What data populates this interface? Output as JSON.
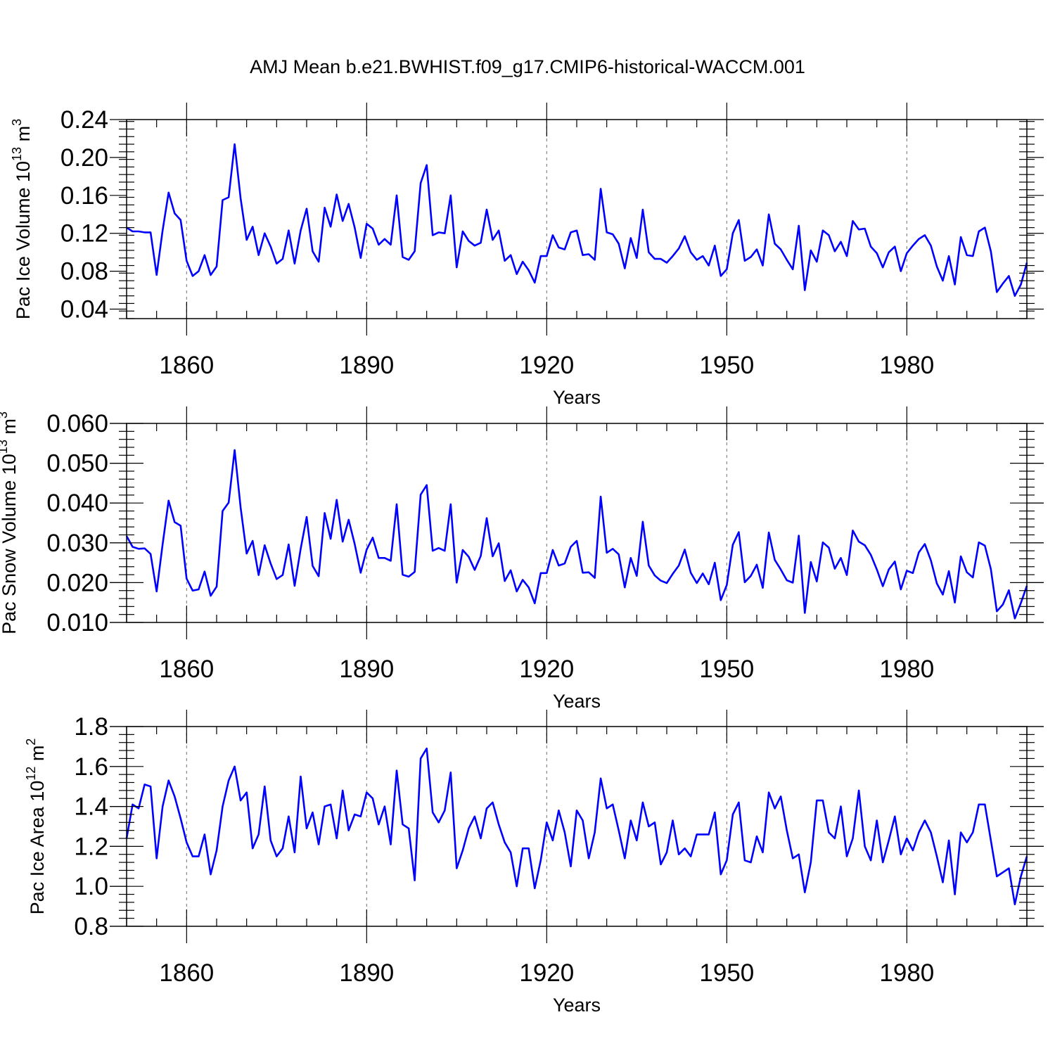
{
  "title": "AMJ Mean b.e21.BWHIST.f09_g17.CMIP6-historical-WACCM.001",
  "colors": {
    "line": "#0000ff",
    "frame": "#000000",
    "grid": "#888888"
  },
  "chart_data": [
    {
      "type": "line",
      "xlabel": "Years",
      "ylabel_text": "Pac Ice Volume 10",
      "ylabel_exp": "13",
      "ylabel_unit": " m",
      "ylabel_unit_exp": "3",
      "xlim": [
        1850,
        2000
      ],
      "ylim": [
        0.03,
        0.24
      ],
      "xticks": [
        1860,
        1890,
        1920,
        1950,
        1980
      ],
      "xtick_labels": [
        "1860",
        "1890",
        "1920",
        "1950",
        "1980"
      ],
      "yticks": [
        0.04,
        0.08,
        0.12,
        0.16,
        0.2,
        0.24
      ],
      "ytick_labels": [
        "0.04",
        "0.08",
        "0.12",
        "0.16",
        "0.20",
        "0.24"
      ],
      "grid": "vertical dashed at major x ticks",
      "series": [
        {
          "x_start": 1850,
          "values": [
            0.126,
            0.122,
            0.122,
            0.121,
            0.121,
            0.076,
            0.123,
            0.163,
            0.141,
            0.134,
            0.091,
            0.075,
            0.08,
            0.097,
            0.076,
            0.085,
            0.155,
            0.158,
            0.214,
            0.157,
            0.113,
            0.127,
            0.097,
            0.12,
            0.106,
            0.088,
            0.093,
            0.123,
            0.088,
            0.123,
            0.146,
            0.101,
            0.09,
            0.147,
            0.127,
            0.161,
            0.133,
            0.151,
            0.126,
            0.094,
            0.13,
            0.125,
            0.108,
            0.114,
            0.108,
            0.16,
            0.095,
            0.092,
            0.101,
            0.173,
            0.192,
            0.118,
            0.121,
            0.12,
            0.16,
            0.084,
            0.122,
            0.112,
            0.107,
            0.11,
            0.145,
            0.113,
            0.123,
            0.091,
            0.097,
            0.077,
            0.09,
            0.081,
            0.068,
            0.096,
            0.096,
            0.118,
            0.105,
            0.103,
            0.121,
            0.123,
            0.097,
            0.098,
            0.092,
            0.167,
            0.121,
            0.119,
            0.109,
            0.083,
            0.115,
            0.094,
            0.145,
            0.1,
            0.093,
            0.093,
            0.089,
            0.096,
            0.104,
            0.117,
            0.1,
            0.092,
            0.096,
            0.086,
            0.107,
            0.075,
            0.082,
            0.12,
            0.134,
            0.091,
            0.095,
            0.103,
            0.086,
            0.14,
            0.109,
            0.103,
            0.092,
            0.082,
            0.128,
            0.06,
            0.102,
            0.09,
            0.123,
            0.118,
            0.101,
            0.111,
            0.096,
            0.133,
            0.124,
            0.125,
            0.106,
            0.099,
            0.084,
            0.1,
            0.106,
            0.08,
            0.099,
            0.107,
            0.114,
            0.118,
            0.107,
            0.085,
            0.07,
            0.096,
            0.066,
            0.116,
            0.097,
            0.096,
            0.122,
            0.126,
            0.101,
            0.058,
            0.067,
            0.075,
            0.054,
            0.066,
            0.089
          ]
        }
      ]
    },
    {
      "type": "line",
      "xlabel": "Years",
      "ylabel_text": "Pac Snow Volume 10",
      "ylabel_exp": "13",
      "ylabel_unit": " m",
      "ylabel_unit_exp": "3",
      "xlim": [
        1850,
        2000
      ],
      "ylim": [
        0.01,
        0.06
      ],
      "xticks": [
        1860,
        1890,
        1920,
        1950,
        1980
      ],
      "xtick_labels": [
        "1860",
        "1890",
        "1920",
        "1950",
        "1980"
      ],
      "yticks": [
        0.01,
        0.02,
        0.03,
        0.04,
        0.05,
        0.06
      ],
      "ytick_labels": [
        "0.010",
        "0.020",
        "0.030",
        "0.040",
        "0.050",
        "0.060"
      ],
      "grid": "vertical dashed at major x ticks",
      "series": [
        {
          "x_start": 1850,
          "values": [
            0.0317,
            0.029,
            0.0285,
            0.0286,
            0.0272,
            0.0178,
            0.0296,
            0.0406,
            0.0352,
            0.0343,
            0.021,
            0.018,
            0.0183,
            0.0228,
            0.0167,
            0.019,
            0.038,
            0.0401,
            0.0533,
            0.0389,
            0.0273,
            0.0305,
            0.0219,
            0.0294,
            0.0248,
            0.0209,
            0.0219,
            0.0296,
            0.0192,
            0.0285,
            0.0365,
            0.0242,
            0.0216,
            0.0375,
            0.031,
            0.0408,
            0.0303,
            0.0358,
            0.0297,
            0.0225,
            0.0283,
            0.0313,
            0.0262,
            0.0262,
            0.0255,
            0.0397,
            0.022,
            0.0215,
            0.0227,
            0.0421,
            0.0445,
            0.028,
            0.0287,
            0.028,
            0.0397,
            0.02,
            0.0282,
            0.0265,
            0.0232,
            0.0267,
            0.0362,
            0.0266,
            0.0299,
            0.0204,
            0.0231,
            0.0178,
            0.0207,
            0.0188,
            0.0148,
            0.0224,
            0.0224,
            0.0282,
            0.0243,
            0.0248,
            0.029,
            0.0305,
            0.0225,
            0.0226,
            0.0212,
            0.0416,
            0.0275,
            0.0285,
            0.0271,
            0.0188,
            0.0262,
            0.0217,
            0.0353,
            0.0243,
            0.0218,
            0.0205,
            0.0199,
            0.0222,
            0.0243,
            0.0283,
            0.0225,
            0.0199,
            0.0223,
            0.0196,
            0.025,
            0.0156,
            0.0194,
            0.0295,
            0.0327,
            0.0201,
            0.0217,
            0.0245,
            0.0187,
            0.0326,
            0.0257,
            0.0233,
            0.0206,
            0.02,
            0.0318,
            0.0124,
            0.0252,
            0.0203,
            0.0301,
            0.0288,
            0.0235,
            0.0262,
            0.0219,
            0.0331,
            0.0303,
            0.0294,
            0.027,
            0.0233,
            0.0191,
            0.0233,
            0.0253,
            0.0183,
            0.023,
            0.0224,
            0.0276,
            0.0297,
            0.0256,
            0.0198,
            0.017,
            0.0229,
            0.015,
            0.0266,
            0.0226,
            0.0213,
            0.0301,
            0.0293,
            0.0234,
            0.0128,
            0.0145,
            0.0181,
            0.011,
            0.0149,
            0.0192
          ]
        }
      ]
    },
    {
      "type": "line",
      "xlabel": "Years",
      "ylabel_text": "Pac Ice Area 10",
      "ylabel_exp": "12",
      "ylabel_unit": " m",
      "ylabel_unit_exp": "2",
      "xlim": [
        1850,
        2000
      ],
      "ylim": [
        0.8,
        1.8
      ],
      "xticks": [
        1860,
        1890,
        1920,
        1950,
        1980
      ],
      "xtick_labels": [
        "1860",
        "1890",
        "1920",
        "1950",
        "1980"
      ],
      "yticks": [
        0.8,
        1.0,
        1.2,
        1.4,
        1.6,
        1.8
      ],
      "ytick_labels": [
        "0.8",
        "1.0",
        "1.2",
        "1.4",
        "1.6",
        "1.8"
      ],
      "grid": "vertical dashed at major x ticks",
      "series": [
        {
          "x_start": 1850,
          "values": [
            1.24,
            1.41,
            1.39,
            1.51,
            1.5,
            1.14,
            1.4,
            1.53,
            1.45,
            1.34,
            1.22,
            1.15,
            1.15,
            1.26,
            1.06,
            1.18,
            1.4,
            1.53,
            1.6,
            1.43,
            1.47,
            1.19,
            1.26,
            1.5,
            1.23,
            1.15,
            1.19,
            1.35,
            1.17,
            1.55,
            1.29,
            1.37,
            1.21,
            1.4,
            1.41,
            1.24,
            1.48,
            1.28,
            1.36,
            1.35,
            1.47,
            1.44,
            1.31,
            1.4,
            1.21,
            1.58,
            1.31,
            1.29,
            1.03,
            1.64,
            1.69,
            1.37,
            1.32,
            1.38,
            1.57,
            1.09,
            1.18,
            1.29,
            1.35,
            1.24,
            1.39,
            1.42,
            1.31,
            1.22,
            1.17,
            1.0,
            1.19,
            1.19,
            0.99,
            1.13,
            1.32,
            1.23,
            1.38,
            1.27,
            1.1,
            1.38,
            1.33,
            1.14,
            1.27,
            1.54,
            1.39,
            1.41,
            1.28,
            1.14,
            1.33,
            1.23,
            1.42,
            1.3,
            1.32,
            1.11,
            1.17,
            1.33,
            1.16,
            1.19,
            1.15,
            1.26,
            1.26,
            1.26,
            1.37,
            1.06,
            1.13,
            1.36,
            1.42,
            1.13,
            1.12,
            1.25,
            1.17,
            1.47,
            1.39,
            1.45,
            1.28,
            1.14,
            1.16,
            0.97,
            1.12,
            1.43,
            1.43,
            1.27,
            1.24,
            1.4,
            1.15,
            1.24,
            1.48,
            1.2,
            1.13,
            1.33,
            1.12,
            1.23,
            1.35,
            1.16,
            1.24,
            1.18,
            1.27,
            1.33,
            1.27,
            1.15,
            1.02,
            1.23,
            0.96,
            1.27,
            1.22,
            1.27,
            1.41,
            1.41,
            1.23,
            1.05,
            1.07,
            1.09,
            0.91,
            1.05,
            1.15
          ]
        }
      ]
    }
  ]
}
